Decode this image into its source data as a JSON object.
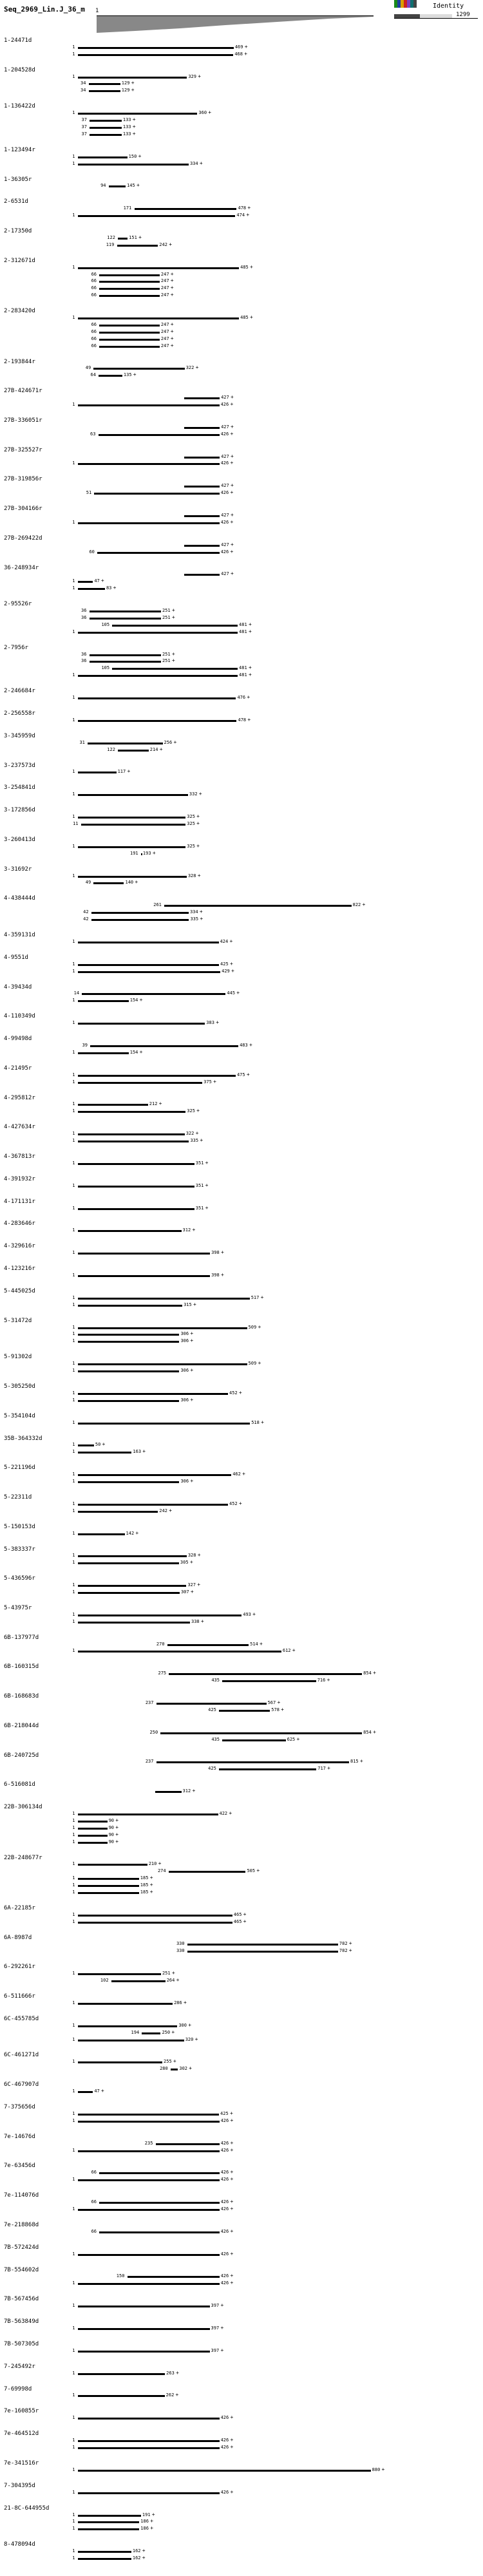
{
  "header": {
    "sequence_title": "Seq_2969_Lin.J_36_m",
    "ruler_start": "1",
    "ruler_end": "1299",
    "identity_label": "Identity"
  },
  "legend": {
    "swatch_colors": [
      "#1a8a1a",
      "#1f3f9f",
      "#d9a000",
      "#cc2222",
      "#7f3fbf",
      "#0f6f6f",
      "#444444"
    ]
  },
  "tracks": [
    {
      "label": "1-24471d",
      "hits": [
        {
          "l": "1",
          "r": "469",
          "s": "+"
        },
        {
          "l": "1",
          "r": "468",
          "s": "+"
        }
      ]
    },
    {
      "label": "1-204528d",
      "hits": [
        {
          "l": "1",
          "r": "329",
          "s": "+"
        },
        {
          "l": "34",
          "r": "129",
          "s": "+"
        },
        {
          "l": "34",
          "r": "129",
          "s": "+"
        }
      ]
    },
    {
      "label": "1-136422d",
      "hits": [
        {
          "l": "1",
          "r": "360",
          "s": "+"
        },
        {
          "l": "37",
          "r": "133",
          "s": "+"
        },
        {
          "l": "37",
          "r": "133",
          "s": "+"
        },
        {
          "l": "37",
          "r": "133",
          "s": "+"
        }
      ]
    },
    {
      "label": "1-123494r",
      "hits": [
        {
          "l": "1",
          "r": "150",
          "s": "+"
        },
        {
          "l": "1",
          "r": "334",
          "s": "+"
        }
      ]
    },
    {
      "label": "1-36305r",
      "hits": [
        {
          "l": "94",
          "r": "145",
          "s": "+"
        }
      ]
    },
    {
      "label": "2-6531d",
      "hits": [
        {
          "l": "171",
          "r": "478",
          "s": "+"
        },
        {
          "l": "1",
          "r": "474",
          "s": "+"
        }
      ]
    },
    {
      "label": "2-17350d",
      "hits": [
        {
          "l": "122",
          "r": "151",
          "s": "+"
        },
        {
          "l": "119",
          "r": "242",
          "s": "+"
        }
      ]
    },
    {
      "label": "2-312671d",
      "hits": [
        {
          "l": "1",
          "r": "485",
          "s": "+"
        },
        {
          "l": "66",
          "r": "247",
          "s": "+"
        },
        {
          "l": "66",
          "r": "247",
          "s": "+"
        },
        {
          "l": "66",
          "r": "247",
          "s": "+"
        },
        {
          "l": "66",
          "r": "247",
          "s": "+"
        }
      ]
    },
    {
      "label": "2-283420d",
      "hits": [
        {
          "l": "1",
          "r": "485",
          "s": "+"
        },
        {
          "l": "66",
          "r": "247",
          "s": "+"
        },
        {
          "l": "66",
          "r": "247",
          "s": "+"
        },
        {
          "l": "66",
          "r": "247",
          "s": "+"
        },
        {
          "l": "66",
          "r": "247",
          "s": "+"
        }
      ]
    },
    {
      "label": "2-193844r",
      "hits": [
        {
          "l": "49",
          "r": "322",
          "s": "+"
        },
        {
          "l": "64",
          "r": "135",
          "s": "+"
        }
      ]
    },
    {
      "label": "27B-424671r",
      "hits": [
        {
          "l": "",
          "r": "427",
          "s": "+"
        },
        {
          "l": "1",
          "r": "426",
          "s": "+"
        }
      ]
    },
    {
      "label": "27B-336051r",
      "hits": [
        {
          "l": "",
          "r": "427",
          "s": "+"
        },
        {
          "l": "63",
          "r": "426",
          "s": "+"
        }
      ]
    },
    {
      "label": "27B-325527r",
      "hits": [
        {
          "l": "",
          "r": "427",
          "s": "+"
        },
        {
          "l": "1",
          "r": "426",
          "s": "+"
        }
      ]
    },
    {
      "label": "27B-319856r",
      "hits": [
        {
          "l": "",
          "r": "427",
          "s": "+"
        },
        {
          "l": "51",
          "r": "426",
          "s": "+"
        }
      ]
    },
    {
      "label": "27B-304166r",
      "hits": [
        {
          "l": "",
          "r": "427",
          "s": "+"
        },
        {
          "l": "1",
          "r": "426",
          "s": "+"
        }
      ]
    },
    {
      "label": "27B-269422d",
      "hits": [
        {
          "l": "",
          "r": "427",
          "s": "+"
        },
        {
          "l": "60",
          "r": "426",
          "s": "+"
        }
      ]
    },
    {
      "label": "36-248934r",
      "hits": [
        {
          "l": "",
          "r": "427",
          "s": "+"
        },
        {
          "l": "1",
          "r": "47",
          "s": "+"
        },
        {
          "l": "1",
          "r": "83",
          "s": "+"
        }
      ]
    },
    {
      "label": "2-95526r",
      "hits": [
        {
          "l": "36",
          "r": "251",
          "s": "+"
        },
        {
          "l": "36",
          "r": "251",
          "s": "+"
        },
        {
          "l": "105",
          "r": "481",
          "s": "+"
        },
        {
          "l": "1",
          "r": "481",
          "s": "+"
        }
      ]
    },
    {
      "label": "2-7956r",
      "hits": [
        {
          "l": "36",
          "r": "251",
          "s": "+"
        },
        {
          "l": "36",
          "r": "251",
          "s": "+"
        },
        {
          "l": "105",
          "r": "481",
          "s": "+"
        },
        {
          "l": "1",
          "r": "481",
          "s": "+"
        }
      ]
    },
    {
      "label": "2-246684r",
      "hits": [
        {
          "l": "1",
          "r": "476",
          "s": "+"
        }
      ]
    },
    {
      "label": "2-256558r",
      "hits": [
        {
          "l": "1",
          "r": "478",
          "s": "+"
        }
      ]
    },
    {
      "label": "3-345959d",
      "hits": [
        {
          "l": "31",
          "r": "256",
          "s": "+"
        },
        {
          "l": "122",
          "r": "214",
          "s": "+"
        }
      ]
    },
    {
      "label": "3-237573d",
      "hits": [
        {
          "l": "1",
          "r": "117",
          "s": "+"
        }
      ]
    },
    {
      "label": "3-254841d",
      "hits": [
        {
          "l": "1",
          "r": "332",
          "s": "+"
        }
      ]
    },
    {
      "label": "3-172856d",
      "hits": [
        {
          "l": "1",
          "r": "325",
          "s": "+"
        },
        {
          "l": "11",
          "r": "325",
          "s": "+"
        }
      ]
    },
    {
      "label": "3-260413d",
      "hits": [
        {
          "l": "1",
          "r": "325",
          "s": "+"
        },
        {
          "l": "191",
          "r": "193",
          "s": "+"
        }
      ]
    },
    {
      "label": "3-31692r",
      "hits": [
        {
          "l": "1",
          "r": "328",
          "s": "+"
        },
        {
          "l": "49",
          "r": "140",
          "s": "+"
        }
      ]
    },
    {
      "label": "4-438444d",
      "hits": [
        {
          "l": "261",
          "r": "822",
          "s": "+"
        },
        {
          "l": "42",
          "r": "334",
          "s": "+"
        },
        {
          "l": "42",
          "r": "335",
          "s": "+"
        }
      ]
    },
    {
      "label": "4-359131d",
      "hits": [
        {
          "l": "1",
          "r": "424",
          "s": "+"
        }
      ]
    },
    {
      "label": "4-9551d",
      "hits": [
        {
          "l": "1",
          "r": "425",
          "s": "+"
        },
        {
          "l": "1",
          "r": "429",
          "s": "+"
        }
      ]
    },
    {
      "label": "4-39434d",
      "hits": [
        {
          "l": "14",
          "r": "445",
          "s": "+"
        },
        {
          "l": "1",
          "r": "154",
          "s": "+"
        }
      ]
    },
    {
      "label": "4-110349d",
      "hits": [
        {
          "l": "1",
          "r": "383",
          "s": "+"
        }
      ]
    },
    {
      "label": "4-99498d",
      "hits": [
        {
          "l": "39",
          "r": "483",
          "s": "+"
        },
        {
          "l": "1",
          "r": "154",
          "s": "+"
        }
      ]
    },
    {
      "label": "4-21495r",
      "hits": [
        {
          "l": "1",
          "r": "475",
          "s": "+"
        },
        {
          "l": "1",
          "r": "375",
          "s": "+"
        }
      ]
    },
    {
      "label": "4-295812r",
      "hits": [
        {
          "l": "1",
          "r": "212",
          "s": "+"
        },
        {
          "l": "1",
          "r": "325",
          "s": "+"
        }
      ]
    },
    {
      "label": "4-427634r",
      "hits": [
        {
          "l": "1",
          "r": "322",
          "s": "+"
        },
        {
          "l": "1",
          "r": "335",
          "s": "+"
        }
      ]
    },
    {
      "label": "4-367813r",
      "hits": [
        {
          "l": "1",
          "r": "351",
          "s": "+"
        }
      ]
    },
    {
      "label": "4-391932r",
      "hits": [
        {
          "l": "1",
          "r": "351",
          "s": "+"
        }
      ]
    },
    {
      "label": "4-171131r",
      "hits": [
        {
          "l": "1",
          "r": "351",
          "s": "+"
        }
      ]
    },
    {
      "label": "4-283646r",
      "hits": [
        {
          "l": "1",
          "r": "312",
          "s": "+"
        }
      ]
    },
    {
      "label": "4-329616r",
      "hits": [
        {
          "l": "1",
          "r": "398",
          "s": "+"
        }
      ]
    },
    {
      "label": "4-123216r",
      "hits": [
        {
          "l": "1",
          "r": "398",
          "s": "+"
        }
      ]
    },
    {
      "label": "5-445025d",
      "hits": [
        {
          "l": "1",
          "r": "517",
          "s": "+"
        },
        {
          "l": "1",
          "r": "315",
          "s": "+"
        }
      ]
    },
    {
      "label": "5-31472d",
      "hits": [
        {
          "l": "1",
          "r": "509",
          "s": "+"
        },
        {
          "l": "1",
          "r": "306",
          "s": "+"
        },
        {
          "l": "1",
          "r": "306",
          "s": "+"
        }
      ]
    },
    {
      "label": "5-91302d",
      "hits": [
        {
          "l": "1",
          "r": "509",
          "s": "+"
        },
        {
          "l": "1",
          "r": "306",
          "s": "+"
        }
      ]
    },
    {
      "label": "5-305250d",
      "hits": [
        {
          "l": "1",
          "r": "452",
          "s": "+"
        },
        {
          "l": "1",
          "r": "306",
          "s": "+"
        }
      ]
    },
    {
      "label": "5-354104d",
      "hits": [
        {
          "l": "1",
          "r": "518",
          "s": "+"
        }
      ]
    },
    {
      "label": "35B-364332d",
      "hits": [
        {
          "l": "1",
          "r": "50",
          "s": "+"
        },
        {
          "l": "1",
          "r": "163",
          "s": "+"
        }
      ]
    },
    {
      "label": "5-221196d",
      "hits": [
        {
          "l": "1",
          "r": "462",
          "s": "+"
        },
        {
          "l": "1",
          "r": "306",
          "s": "+"
        }
      ]
    },
    {
      "label": "5-22311d",
      "hits": [
        {
          "l": "1",
          "r": "452",
          "s": "+"
        },
        {
          "l": "1",
          "r": "242",
          "s": "+"
        }
      ]
    },
    {
      "label": "5-150153d",
      "hits": [
        {
          "l": "1",
          "r": "142",
          "s": "+"
        }
      ]
    },
    {
      "label": "5-383337r",
      "hits": [
        {
          "l": "1",
          "r": "328",
          "s": "+"
        },
        {
          "l": "1",
          "r": "305",
          "s": "+"
        }
      ]
    },
    {
      "label": "5-436596r",
      "hits": [
        {
          "l": "1",
          "r": "327",
          "s": "+"
        },
        {
          "l": "1",
          "r": "307",
          "s": "+"
        }
      ]
    },
    {
      "label": "5-43975r",
      "hits": [
        {
          "l": "1",
          "r": "493",
          "s": "+"
        },
        {
          "l": "1",
          "r": "338",
          "s": "+"
        }
      ]
    },
    {
      "label": "6B-137977d",
      "hits": [
        {
          "l": "270",
          "r": "514",
          "s": "+"
        },
        {
          "l": "1",
          "r": "612",
          "s": "+"
        }
      ]
    },
    {
      "label": "6B-160315d",
      "hits": [
        {
          "l": "275",
          "r": "854",
          "s": "+"
        },
        {
          "l": "435",
          "r": "716",
          "s": "+"
        }
      ]
    },
    {
      "label": "6B-168683d",
      "hits": [
        {
          "l": "237",
          "r": "567",
          "s": "+"
        },
        {
          "l": "425",
          "r": "578",
          "s": "+"
        }
      ]
    },
    {
      "label": "6B-218044d",
      "hits": [
        {
          "l": "250",
          "r": "854",
          "s": "+"
        },
        {
          "l": "435",
          "r": "625",
          "s": "+"
        }
      ]
    },
    {
      "label": "6B-240725d",
      "hits": [
        {
          "l": "237",
          "r": "815",
          "s": "+"
        },
        {
          "l": "425",
          "r": "717",
          "s": "+"
        }
      ]
    },
    {
      "label": "6-516081d",
      "hits": [
        {
          "l": "",
          "r": "312",
          "s": "+"
        }
      ]
    },
    {
      "label": "22B-306134d",
      "hits": [
        {
          "l": "1",
          "r": "422",
          "s": "+"
        },
        {
          "l": "1",
          "r": "90",
          "s": "+"
        },
        {
          "l": "1",
          "r": "90",
          "s": "+"
        },
        {
          "l": "1",
          "r": "90",
          "s": "+"
        },
        {
          "l": "1",
          "r": "90",
          "s": "+"
        }
      ]
    },
    {
      "label": "22B-248677r",
      "hits": [
        {
          "l": "1",
          "r": "210",
          "s": "+"
        },
        {
          "l": "274",
          "r": "505",
          "s": "+"
        },
        {
          "l": "1",
          "r": "185",
          "s": "+"
        },
        {
          "l": "1",
          "r": "185",
          "s": "+"
        },
        {
          "l": "1",
          "r": "185",
          "s": "+"
        }
      ]
    },
    {
      "label": "6A-22185r",
      "hits": [
        {
          "l": "1",
          "r": "465",
          "s": "+"
        },
        {
          "l": "1",
          "r": "465",
          "s": "+"
        }
      ]
    },
    {
      "label": "6A-8987d",
      "hits": [
        {
          "l": "330",
          "r": "782",
          "s": "+"
        },
        {
          "l": "330",
          "r": "782",
          "s": "+"
        }
      ]
    },
    {
      "label": "6-292261r",
      "hits": [
        {
          "l": "1",
          "r": "251",
          "s": "+"
        },
        {
          "l": "102",
          "r": "264",
          "s": "+"
        }
      ]
    },
    {
      "label": "6-511666r",
      "hits": [
        {
          "l": "1",
          "r": "286",
          "s": "+"
        }
      ]
    },
    {
      "label": "6C-455785d",
      "hits": [
        {
          "l": "1",
          "r": "300",
          "s": "+"
        },
        {
          "l": "194",
          "r": "250",
          "s": "+"
        },
        {
          "l": "1",
          "r": "320",
          "s": "+"
        }
      ]
    },
    {
      "label": "6C-461271d",
      "hits": [
        {
          "l": "1",
          "r": "255",
          "s": "+"
        },
        {
          "l": "280",
          "r": "302",
          "s": "+"
        }
      ]
    },
    {
      "label": "6C-467907d",
      "hits": [
        {
          "l": "1",
          "r": "47",
          "s": "+"
        }
      ]
    },
    {
      "label": "7-375656d",
      "hits": [
        {
          "l": "1",
          "r": "425",
          "s": "+"
        },
        {
          "l": "1",
          "r": "426",
          "s": "+"
        }
      ]
    },
    {
      "label": "7e-14676d",
      "hits": [
        {
          "l": "235",
          "r": "426",
          "s": "+"
        },
        {
          "l": "1",
          "r": "426",
          "s": "+"
        }
      ]
    },
    {
      "label": "7e-63456d",
      "hits": [
        {
          "l": "66",
          "r": "426",
          "s": "+"
        },
        {
          "l": "1",
          "r": "426",
          "s": "+"
        }
      ]
    },
    {
      "label": "7e-114076d",
      "hits": [
        {
          "l": "66",
          "r": "426",
          "s": "+"
        },
        {
          "l": "1",
          "r": "426",
          "s": "+"
        }
      ]
    },
    {
      "label": "7e-218868d",
      "hits": [
        {
          "l": "66",
          "r": "426",
          "s": "+"
        }
      ]
    },
    {
      "label": "7B-572424d",
      "hits": [
        {
          "l": "1",
          "r": "426",
          "s": "+"
        }
      ]
    },
    {
      "label": "7B-554602d",
      "hits": [
        {
          "l": "150",
          "r": "426",
          "s": "+"
        },
        {
          "l": "1",
          "r": "426",
          "s": "+"
        }
      ]
    },
    {
      "label": "7B-567456d",
      "hits": [
        {
          "l": "1",
          "r": "397",
          "s": "+"
        }
      ]
    },
    {
      "label": "7B-563849d",
      "hits": [
        {
          "l": "1",
          "r": "397",
          "s": "+"
        }
      ]
    },
    {
      "label": "7B-507305d",
      "hits": [
        {
          "l": "1",
          "r": "397",
          "s": "+"
        }
      ]
    },
    {
      "label": "7-245492r",
      "hits": [
        {
          "l": "1",
          "r": "263",
          "s": "+"
        }
      ]
    },
    {
      "label": "7-69998d",
      "hits": [
        {
          "l": "1",
          "r": "262",
          "s": "+"
        }
      ]
    },
    {
      "label": "7e-160855r",
      "hits": [
        {
          "l": "1",
          "r": "426",
          "s": "+"
        }
      ]
    },
    {
      "label": "7e-464512d",
      "hits": [
        {
          "l": "1",
          "r": "426",
          "s": "+"
        },
        {
          "l": "1",
          "r": "426",
          "s": "+"
        }
      ]
    },
    {
      "label": "7e-341516r",
      "hits": [
        {
          "l": "1",
          "r": "880",
          "s": "+"
        }
      ]
    },
    {
      "label": "7-304395d",
      "hits": [
        {
          "l": "1",
          "r": "426",
          "s": "+"
        }
      ]
    },
    {
      "label": "21-8C-644955d",
      "hits": [
        {
          "l": "1",
          "r": "191",
          "s": "+"
        },
        {
          "l": "1",
          "r": "186",
          "s": "+"
        },
        {
          "l": "1",
          "r": "186",
          "s": "+"
        }
      ]
    },
    {
      "label": "8-478094d",
      "hits": [
        {
          "l": "1",
          "r": "162",
          "s": "+"
        },
        {
          "l": "1",
          "r": "162",
          "s": "+"
        }
      ]
    }
  ]
}
